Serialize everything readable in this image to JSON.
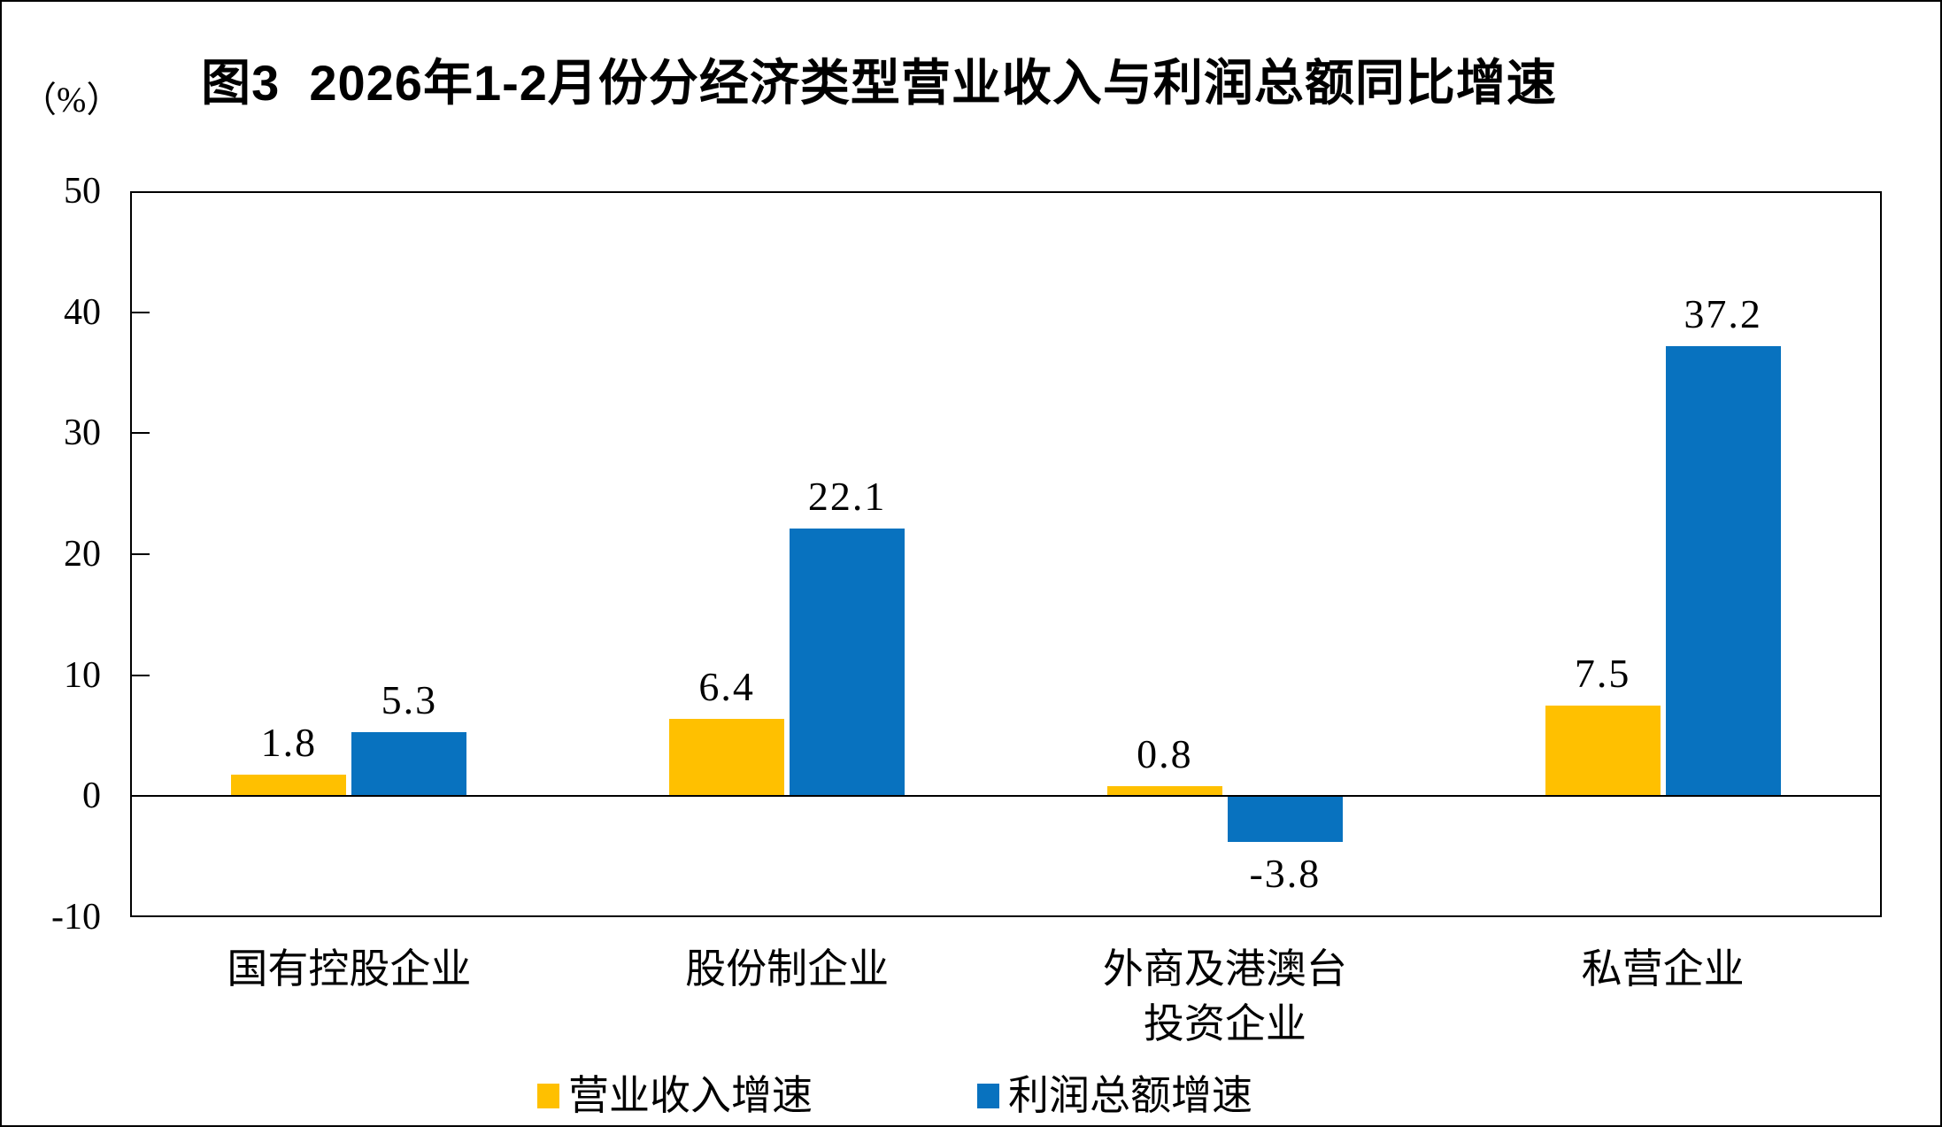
{
  "title": "图3  2026年1-2月份分经济类型营业收入与利润总额同比增速",
  "y_axis": {
    "unit_label": "（%）",
    "tick_labels": [
      "50",
      "40",
      "30",
      "20",
      "10",
      "0",
      "-10"
    ],
    "tick_values": [
      50,
      40,
      30,
      20,
      10,
      0,
      -10
    ]
  },
  "chart_data": {
    "type": "bar",
    "title": "图3 2026年1-2月份分经济类型营业收入与利润总额同比增速",
    "categories": [
      "国有控股企业",
      "股份制企业",
      "外商及港澳台投资企业",
      "私营企业"
    ],
    "category_lines": [
      [
        "国有控股企业"
      ],
      [
        "股份制企业"
      ],
      [
        "外商及港澳台",
        "投资企业"
      ],
      [
        "私营企业"
      ]
    ],
    "series": [
      {
        "name": "营业收入增速",
        "color": "#FFC000",
        "values": [
          1.8,
          6.4,
          0.8,
          7.5
        ],
        "labels": [
          "1.8",
          "6.4",
          "0.8",
          "7.5"
        ]
      },
      {
        "name": "利润总额增速",
        "color": "#0872BF",
        "values": [
          5.3,
          22.1,
          -3.8,
          37.2
        ],
        "labels": [
          "5.3",
          "22.1",
          "-3.8",
          "37.2"
        ]
      }
    ],
    "xlabel": "",
    "ylabel": "（%）",
    "ylim": [
      -10,
      50
    ],
    "ystep": 10,
    "grid": false,
    "zero_line": true,
    "legend_position": "bottom"
  },
  "legend": {
    "items": [
      {
        "label": "营业收入增速",
        "color": "#FFC000"
      },
      {
        "label": "利润总额增速",
        "color": "#0872BF"
      }
    ]
  }
}
